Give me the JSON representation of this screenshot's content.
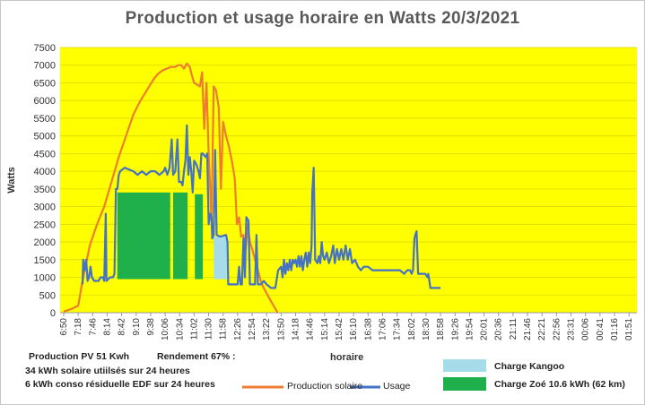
{
  "chart_data": {
    "type": "line",
    "title": "Production et usage horaire en Watts 20/3/2021",
    "xlabel": "horaire",
    "ylabel": "Watts",
    "ylim": [
      0,
      7500
    ],
    "ytick_step": 500,
    "grid": true,
    "background": "#ffff00",
    "x_ticks": [
      "6:50",
      "7:18",
      "7:46",
      "8:14",
      "8:42",
      "9:10",
      "9:38",
      "10:06",
      "10:34",
      "11:02",
      "11:30",
      "11:58",
      "12:26",
      "12:54",
      "13:22",
      "13:50",
      "14:18",
      "14:46",
      "15:14",
      "15:42",
      "16:10",
      "16:38",
      "17:06",
      "17:34",
      "18:02",
      "18:30",
      "18:58",
      "19:26",
      "19:54",
      "20:01",
      "20:36",
      "21:11",
      "21:46",
      "22:21",
      "22:56",
      "23:31",
      "00:06",
      "00:41",
      "01:16",
      "01:51"
    ],
    "series": [
      {
        "name": "Production solaire",
        "color": "#ed7d31",
        "points": [
          [
            0,
            30
          ],
          [
            0.5,
            100
          ],
          [
            1,
            200
          ],
          [
            1.3,
            900
          ],
          [
            1.8,
            1900
          ],
          [
            2.3,
            2500
          ],
          [
            2.8,
            3000
          ],
          [
            3.3,
            3700
          ],
          [
            3.8,
            4400
          ],
          [
            4.3,
            5000
          ],
          [
            4.8,
            5600
          ],
          [
            5.3,
            6000
          ],
          [
            5.6,
            6200
          ],
          [
            5.9,
            6400
          ],
          [
            6.2,
            6600
          ],
          [
            6.5,
            6750
          ],
          [
            6.8,
            6850
          ],
          [
            7.1,
            6900
          ],
          [
            7.4,
            6950
          ],
          [
            7.7,
            6950
          ],
          [
            7.9,
            7000
          ],
          [
            8.1,
            7000
          ],
          [
            8.3,
            6900
          ],
          [
            8.5,
            7050
          ],
          [
            8.7,
            6950
          ],
          [
            8.85,
            6700
          ],
          [
            9.0,
            6500
          ],
          [
            9.2,
            6450
          ],
          [
            9.4,
            6400
          ],
          [
            9.55,
            6800
          ],
          [
            9.7,
            5200
          ],
          [
            9.85,
            6500
          ],
          [
            10.0,
            4500
          ],
          [
            10.2,
            2600
          ],
          [
            10.35,
            6400
          ],
          [
            10.5,
            6300
          ],
          [
            10.7,
            5800
          ],
          [
            10.85,
            3500
          ],
          [
            11.0,
            5400
          ],
          [
            11.2,
            5000
          ],
          [
            11.4,
            4700
          ],
          [
            11.6,
            4300
          ],
          [
            11.8,
            3800
          ],
          [
            11.95,
            2500
          ],
          [
            12.1,
            2700
          ],
          [
            12.25,
            2150
          ],
          [
            12.4,
            2200
          ],
          [
            12.55,
            1800
          ],
          [
            12.7,
            2500
          ],
          [
            12.85,
            2000
          ],
          [
            13.0,
            1800
          ],
          [
            13.2,
            1500
          ],
          [
            13.4,
            1200
          ],
          [
            13.6,
            900
          ],
          [
            13.8,
            700
          ],
          [
            14.0,
            550
          ],
          [
            14.2,
            400
          ],
          [
            14.4,
            250
          ],
          [
            14.6,
            120
          ],
          [
            14.75,
            0
          ]
        ]
      },
      {
        "name": "Usage",
        "color": "#4472c4",
        "points": [
          [
            1.3,
            800
          ],
          [
            1.35,
            1500
          ],
          [
            1.45,
            1200
          ],
          [
            1.55,
            1500
          ],
          [
            1.65,
            900
          ],
          [
            1.75,
            1000
          ],
          [
            1.85,
            1300
          ],
          [
            1.95,
            1000
          ],
          [
            2.1,
            900
          ],
          [
            2.4,
            900
          ],
          [
            2.55,
            1000
          ],
          [
            2.7,
            1000
          ],
          [
            2.8,
            900
          ],
          [
            2.9,
            2800
          ],
          [
            2.95,
            900
          ],
          [
            3.2,
            1000
          ],
          [
            3.4,
            1000
          ],
          [
            3.5,
            1100
          ],
          [
            3.6,
            3500
          ],
          [
            3.7,
            3500
          ],
          [
            3.8,
            3900
          ],
          [
            3.9,
            4000
          ],
          [
            4.2,
            4100
          ],
          [
            4.5,
            4050
          ],
          [
            4.8,
            4000
          ],
          [
            5.1,
            3900
          ],
          [
            5.4,
            4000
          ],
          [
            5.7,
            3900
          ],
          [
            6.0,
            4000
          ],
          [
            6.3,
            4000
          ],
          [
            6.6,
            3900
          ],
          [
            6.9,
            4000
          ],
          [
            7.0,
            4100
          ],
          [
            7.15,
            3900
          ],
          [
            7.3,
            4100
          ],
          [
            7.45,
            4900
          ],
          [
            7.55,
            3900
          ],
          [
            7.7,
            4000
          ],
          [
            7.85,
            4900
          ],
          [
            7.95,
            3700
          ],
          [
            8.1,
            3700
          ],
          [
            8.2,
            3600
          ],
          [
            8.3,
            4000
          ],
          [
            8.4,
            4300
          ],
          [
            8.5,
            5300
          ],
          [
            8.6,
            3900
          ],
          [
            8.7,
            4400
          ],
          [
            8.8,
            4000
          ],
          [
            8.9,
            3400
          ],
          [
            9.0,
            4300
          ],
          [
            9.15,
            4200
          ],
          [
            9.3,
            4000
          ],
          [
            9.4,
            3800
          ],
          [
            9.5,
            4500
          ],
          [
            9.6,
            4500
          ],
          [
            9.8,
            4400
          ],
          [
            9.9,
            4500
          ],
          [
            10.0,
            2500
          ],
          [
            10.1,
            2800
          ],
          [
            10.2,
            2700
          ],
          [
            10.25,
            2100
          ],
          [
            10.35,
            2200
          ],
          [
            10.45,
            4600
          ],
          [
            10.55,
            2200
          ],
          [
            10.8,
            2150
          ],
          [
            11.2,
            2200
          ],
          [
            11.3,
            2000
          ],
          [
            11.35,
            800
          ],
          [
            11.6,
            800
          ],
          [
            12.0,
            800
          ],
          [
            12.1,
            1300
          ],
          [
            12.2,
            800
          ],
          [
            12.3,
            800
          ],
          [
            12.4,
            2100
          ],
          [
            12.5,
            1000
          ],
          [
            12.6,
            2700
          ],
          [
            12.75,
            2600
          ],
          [
            12.85,
            800
          ],
          [
            13.2,
            800
          ],
          [
            13.3,
            2200
          ],
          [
            13.4,
            800
          ],
          [
            13.6,
            800
          ],
          [
            13.8,
            900
          ],
          [
            14.0,
            800
          ],
          [
            14.3,
            700
          ],
          [
            14.6,
            700
          ],
          [
            14.8,
            1200
          ],
          [
            15.0,
            1300
          ],
          [
            15.1,
            1000
          ],
          [
            15.2,
            1500
          ],
          [
            15.3,
            1100
          ],
          [
            15.4,
            1400
          ],
          [
            15.5,
            1200
          ],
          [
            15.6,
            1500
          ],
          [
            15.7,
            1200
          ],
          [
            15.8,
            1500
          ],
          [
            15.9,
            1400
          ],
          [
            16.0,
            1500
          ],
          [
            16.1,
            1300
          ],
          [
            16.2,
            1600
          ],
          [
            16.3,
            1300
          ],
          [
            16.4,
            1600
          ],
          [
            16.5,
            1200
          ],
          [
            16.6,
            1500
          ],
          [
            16.7,
            1700
          ],
          [
            16.8,
            1300
          ],
          [
            16.9,
            1700
          ],
          [
            17.0,
            1400
          ],
          [
            17.1,
            1900
          ],
          [
            17.15,
            3400
          ],
          [
            17.25,
            4100
          ],
          [
            17.35,
            1500
          ],
          [
            17.5,
            1400
          ],
          [
            17.6,
            1600
          ],
          [
            17.7,
            1400
          ],
          [
            17.8,
            2000
          ],
          [
            17.9,
            1600
          ],
          [
            18.0,
            1500
          ],
          [
            18.15,
            1700
          ],
          [
            18.3,
            1400
          ],
          [
            18.45,
            1600
          ],
          [
            18.6,
            1900
          ],
          [
            18.7,
            1400
          ],
          [
            18.85,
            1800
          ],
          [
            19.0,
            1500
          ],
          [
            19.15,
            1800
          ],
          [
            19.3,
            1500
          ],
          [
            19.45,
            1900
          ],
          [
            19.6,
            1500
          ],
          [
            19.75,
            1800
          ],
          [
            19.9,
            1400
          ],
          [
            20.1,
            1500
          ],
          [
            20.3,
            1300
          ],
          [
            20.5,
            1200
          ],
          [
            20.7,
            1300
          ],
          [
            21.0,
            1300
          ],
          [
            21.3,
            1200
          ],
          [
            21.6,
            1200
          ],
          [
            22.0,
            1200
          ],
          [
            22.4,
            1200
          ],
          [
            22.8,
            1200
          ],
          [
            23.2,
            1200
          ],
          [
            23.5,
            1100
          ],
          [
            23.7,
            1200
          ],
          [
            23.9,
            1200
          ],
          [
            24.0,
            1100
          ],
          [
            24.1,
            1200
          ],
          [
            24.2,
            2100
          ],
          [
            24.3,
            2250
          ],
          [
            24.35,
            2300
          ],
          [
            24.45,
            1100
          ],
          [
            24.7,
            1100
          ],
          [
            24.95,
            1100
          ],
          [
            25.1,
            1000
          ],
          [
            25.15,
            1100
          ],
          [
            25.3,
            700
          ],
          [
            25.6,
            700
          ],
          [
            25.9,
            700
          ],
          [
            26.0,
            700
          ]
        ]
      }
    ],
    "bars": [
      {
        "name": "Charge Zoé 10.6 kWh (62 km)",
        "color": "#1faf4b",
        "from": 3.7,
        "to": 7.35,
        "bottom": 950,
        "top": 3400
      },
      {
        "name": "Charge Zoé 10.6 kWh (62 km)",
        "color": "#1faf4b",
        "from": 7.55,
        "to": 8.55,
        "bottom": 950,
        "top": 3400
      },
      {
        "name": "Charge Zoé 10.6 kWh (62 km)",
        "color": "#1faf4b",
        "from": 9.05,
        "to": 9.6,
        "bottom": 950,
        "top": 3350
      },
      {
        "name": "Charge Kangoo",
        "color": "#a6dcea",
        "from": 10.35,
        "to": 11.25,
        "bottom": 950,
        "top": 2150
      }
    ]
  },
  "info": {
    "production": "Production PV 51 Kwh",
    "rendement": "Rendement 67% :",
    "solaire": "34 kWh solaire utiilsés sur 24 heures",
    "residuelle": "6 kWh conso résiduelle EDF sur 24 heures"
  },
  "legend": {
    "production": "Production solaire",
    "usage": "Usage",
    "kangoo": "Charge Kangoo",
    "zoe": "Charge Zoé  10.6 kWh  (62 km)",
    "production_color": "#ed7d31",
    "usage_color": "#4472c4",
    "kangoo_color": "#a6dcea",
    "zoe_color": "#1faf4b"
  }
}
